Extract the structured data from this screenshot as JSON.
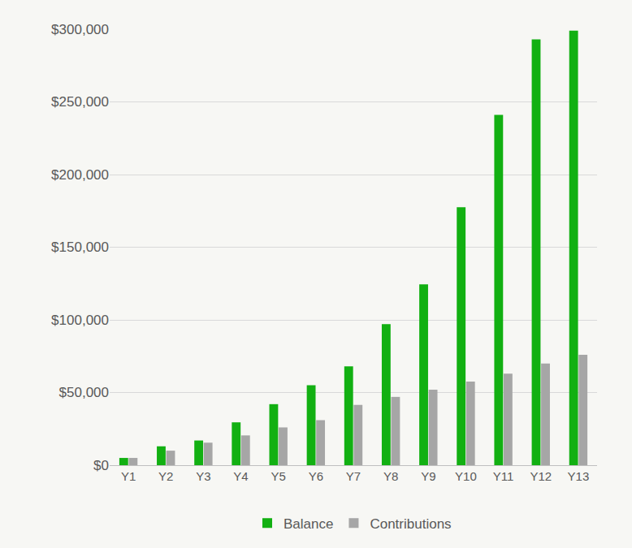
{
  "chart_data": {
    "type": "bar",
    "categories": [
      "Y1",
      "Y2",
      "Y3",
      "Y4",
      "Y5",
      "Y6",
      "Y7",
      "Y8",
      "Y9",
      "Y10",
      "Y11",
      "Y12",
      "Y13"
    ],
    "series": [
      {
        "name": "Balance",
        "color": "#12b012",
        "values": [
          5000,
          13000,
          17000,
          29500,
          42000,
          55000,
          68000,
          97000,
          124500,
          177500,
          241000,
          293000,
          299000
        ]
      },
      {
        "name": "Contributions",
        "color": "#a6a6a6",
        "values": [
          5000,
          10000,
          15500,
          20500,
          26000,
          31000,
          41500,
          47000,
          52000,
          57500,
          63000,
          70000,
          76000
        ]
      }
    ],
    "ylim": [
      0,
      300000
    ],
    "yticks": [
      {
        "value": 0,
        "label": "$0"
      },
      {
        "value": 50000,
        "label": "$50,000"
      },
      {
        "value": 100000,
        "label": "$100,000"
      },
      {
        "value": 150000,
        "label": "$150,000"
      },
      {
        "value": 200000,
        "label": "$200,000"
      },
      {
        "value": 250000,
        "label": "$250,000"
      },
      {
        "value": 300000,
        "label": "$300,000"
      }
    ],
    "grid": true,
    "legend": "bottom"
  }
}
